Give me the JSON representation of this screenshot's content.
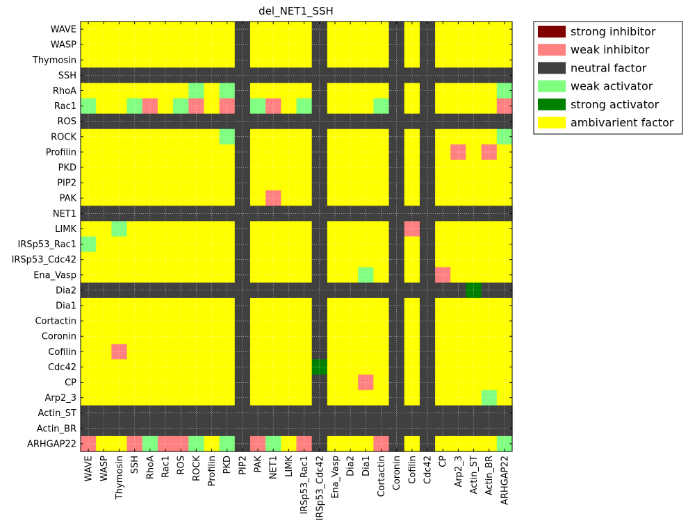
{
  "chart_data": {
    "type": "heatmap",
    "title": "del_NET1_SSH",
    "xlabel": "",
    "ylabel": "",
    "grid": true,
    "legend_position": "outside-top-right",
    "row_labels": [
      "WAVE",
      "WASP",
      "Thymosin",
      "SSH",
      "RhoA",
      "Rac1",
      "ROS",
      "ROCK",
      "Profilin",
      "PKD",
      "PIP2",
      "PAK",
      "NET1",
      "LIMK",
      "IRSp53_Rac1",
      "IRSp53_Cdc42",
      "Ena_Vasp",
      "Dia2",
      "Dia1",
      "Cortactin",
      "Coronin",
      "Cofilin",
      "Cdc42",
      "CP",
      "Arp2_3",
      "Actin_ST",
      "Actin_BR",
      "ARHGAP22"
    ],
    "col_labels": [
      "WAVE",
      "WASP",
      "Thymosin",
      "SSH",
      "RhoA",
      "Rac1",
      "ROS",
      "ROCK",
      "Profilin",
      "PKD",
      "PIP2",
      "PAK",
      "NET1",
      "LIMK",
      "IRSp53_Rac1",
      "IRSp53_Cdc42",
      "Ena_Vasp",
      "Dia2",
      "Dia1",
      "Cortactin",
      "Coronin",
      "Cofilin",
      "Cdc42",
      "CP",
      "Arp2_3",
      "Actin_ST",
      "Actin_BR",
      "ARHGAP22"
    ],
    "categories": [
      {
        "code": -2,
        "name": "strong inhibitor",
        "color": "#800000"
      },
      {
        "code": -1,
        "name": "weak inhibitor",
        "color": "#ff8080"
      },
      {
        "code": 0,
        "name": "neutral factor",
        "color": "#404040"
      },
      {
        "code": 1,
        "name": "weak activator",
        "color": "#80ff80"
      },
      {
        "code": 2,
        "name": "strong activator",
        "color": "#008000"
      },
      {
        "code": 3,
        "name": "ambivarient factor",
        "color": "#ffff00"
      }
    ],
    "default_code": 3,
    "neutral_rows": [
      "SSH",
      "ROS",
      "NET1",
      "Dia2",
      "Actin_ST",
      "Actin_BR"
    ],
    "neutral_cols": [
      "PIP2",
      "IRSp53_Cdc42",
      "Coronin",
      "Cdc42"
    ],
    "cells": [
      {
        "row": "RhoA",
        "col": "ROCK",
        "code": 1
      },
      {
        "row": "RhoA",
        "col": "PKD",
        "code": 1
      },
      {
        "row": "RhoA",
        "col": "ARHGAP22",
        "code": 1
      },
      {
        "row": "Rac1",
        "col": "WAVE",
        "code": 1
      },
      {
        "row": "Rac1",
        "col": "SSH",
        "code": 1
      },
      {
        "row": "Rac1",
        "col": "RhoA",
        "code": -1
      },
      {
        "row": "Rac1",
        "col": "ROS",
        "code": 1
      },
      {
        "row": "Rac1",
        "col": "ROCK",
        "code": -1
      },
      {
        "row": "Rac1",
        "col": "PKD",
        "code": -1
      },
      {
        "row": "Rac1",
        "col": "PAK",
        "code": 1
      },
      {
        "row": "Rac1",
        "col": "NET1",
        "code": -1
      },
      {
        "row": "Rac1",
        "col": "IRSp53_Rac1",
        "code": 1
      },
      {
        "row": "Rac1",
        "col": "Cortactin",
        "code": 1
      },
      {
        "row": "Rac1",
        "col": "ARHGAP22",
        "code": -1
      },
      {
        "row": "ROCK",
        "col": "PKD",
        "code": 1
      },
      {
        "row": "ROCK",
        "col": "ARHGAP22",
        "code": 1
      },
      {
        "row": "Profilin",
        "col": "Arp2_3",
        "code": -1
      },
      {
        "row": "Profilin",
        "col": "Actin_BR",
        "code": -1
      },
      {
        "row": "PAK",
        "col": "NET1",
        "code": -1
      },
      {
        "row": "LIMK",
        "col": "Thymosin",
        "code": 1
      },
      {
        "row": "LIMK",
        "col": "Cofilin",
        "code": -1
      },
      {
        "row": "IRSp53_Rac1",
        "col": "WAVE",
        "code": 1
      },
      {
        "row": "Ena_Vasp",
        "col": "Dia1",
        "code": 1
      },
      {
        "row": "Ena_Vasp",
        "col": "CP",
        "code": -1
      },
      {
        "row": "Dia2",
        "col": "Actin_ST",
        "code": 2
      },
      {
        "row": "Cofilin",
        "col": "Thymosin",
        "code": -1
      },
      {
        "row": "Cdc42",
        "col": "IRSp53_Cdc42",
        "code": 2
      },
      {
        "row": "CP",
        "col": "Dia1",
        "code": -1
      },
      {
        "row": "Arp2_3",
        "col": "Actin_BR",
        "code": 1
      },
      {
        "row": "ARHGAP22",
        "col": "WAVE",
        "code": -1
      },
      {
        "row": "ARHGAP22",
        "col": "SSH",
        "code": -1
      },
      {
        "row": "ARHGAP22",
        "col": "RhoA",
        "code": 1
      },
      {
        "row": "ARHGAP22",
        "col": "Rac1",
        "code": -1
      },
      {
        "row": "ARHGAP22",
        "col": "ROS",
        "code": -1
      },
      {
        "row": "ARHGAP22",
        "col": "ROCK",
        "code": 1
      },
      {
        "row": "ARHGAP22",
        "col": "PKD",
        "code": 1
      },
      {
        "row": "ARHGAP22",
        "col": "PAK",
        "code": -1
      },
      {
        "row": "ARHGAP22",
        "col": "NET1",
        "code": 1
      },
      {
        "row": "ARHGAP22",
        "col": "IRSp53_Rac1",
        "code": -1
      },
      {
        "row": "ARHGAP22",
        "col": "Cortactin",
        "code": -1
      },
      {
        "row": "ARHGAP22",
        "col": "ARHGAP22",
        "code": 1
      }
    ]
  }
}
